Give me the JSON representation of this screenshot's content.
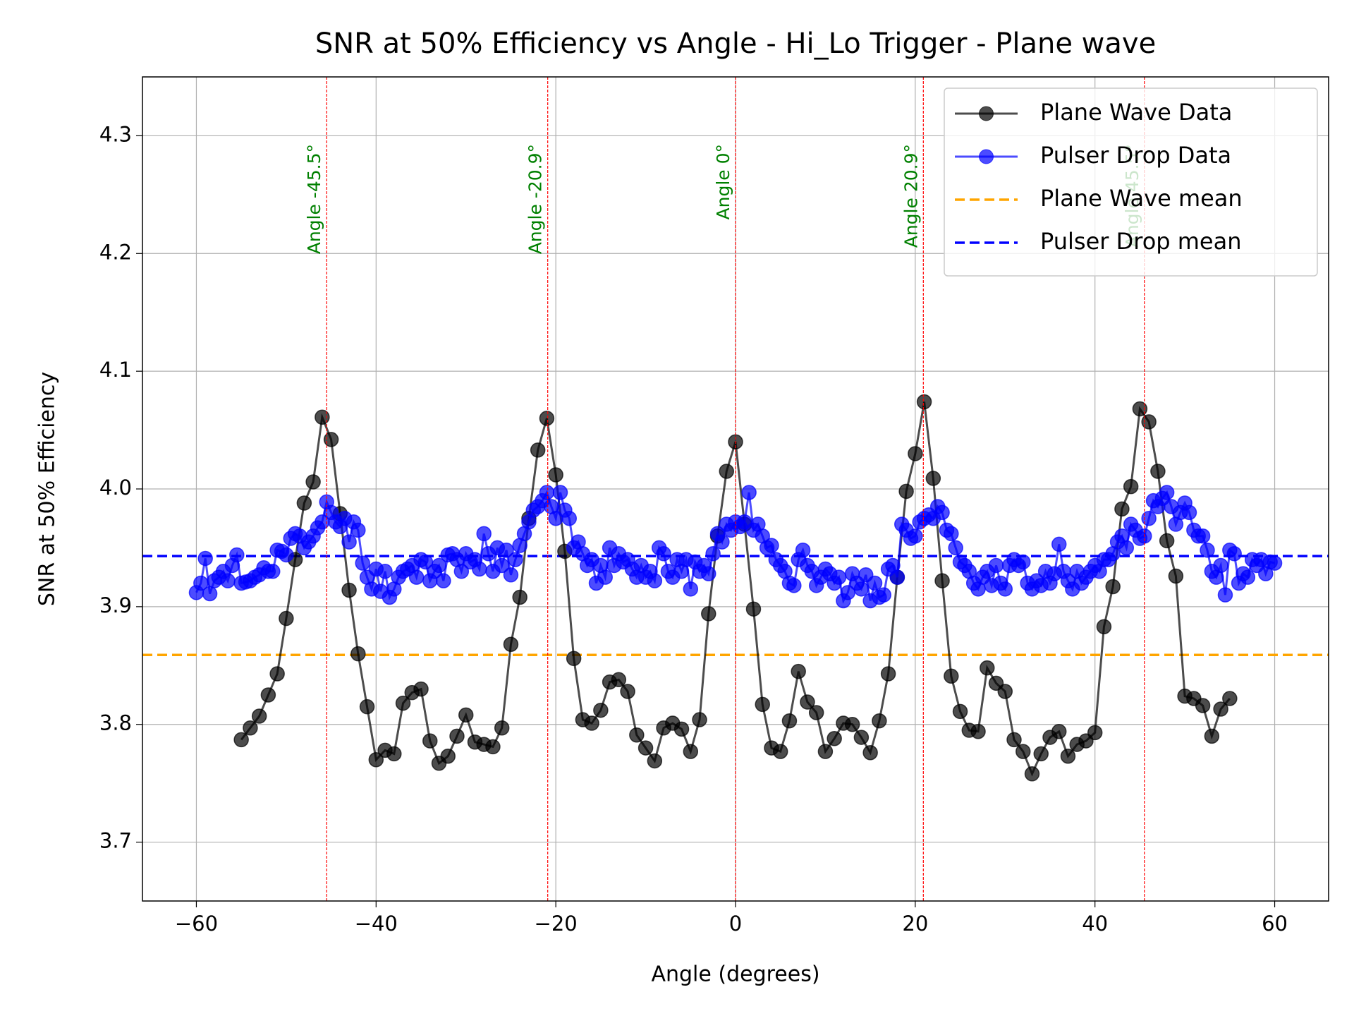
{
  "chart_data": {
    "type": "line",
    "title": "SNR at 50% Efficiency vs Angle - Hi_Lo Trigger - Plane wave",
    "xlabel": "Angle (degrees)",
    "ylabel": "SNR at 50% Efficiency",
    "xlim": [
      -66,
      66
    ],
    "ylim": [
      3.65,
      4.35
    ],
    "xticks": [
      {
        "value": -60,
        "label": "−60"
      },
      {
        "value": -40,
        "label": "−40"
      },
      {
        "value": -20,
        "label": "−20"
      },
      0,
      20,
      40,
      60
    ],
    "yticks": [
      3.7,
      3.8,
      3.9,
      {
        "value": 4.0,
        "label": "4.0"
      },
      4.1,
      4.2,
      4.3
    ],
    "grid": true,
    "legend": "upper right",
    "series": [
      {
        "name": "Plane Wave Data",
        "color": "black",
        "alpha": 0.7,
        "x": [
          -55,
          -54,
          -53,
          -52,
          -51,
          -50,
          -49,
          -48,
          -47,
          -46,
          -45,
          -44,
          -43,
          -42,
          -41,
          -40,
          -39,
          -38,
          -37,
          -36,
          -35,
          -34,
          -33,
          -32,
          -31,
          -30,
          -29,
          -28,
          -27,
          -26,
          -25,
          -24,
          -23,
          -22,
          -21,
          -20,
          -19,
          -18,
          -17,
          -16,
          -15,
          -14,
          -13,
          -12,
          -11,
          -10,
          -9,
          -8,
          -7,
          -6,
          -5,
          -4,
          -3,
          -2,
          -1,
          0,
          1,
          2,
          3,
          4,
          5,
          6,
          7,
          8,
          9,
          10,
          11,
          12,
          13,
          14,
          15,
          16,
          17,
          18,
          19,
          20,
          21,
          22,
          23,
          24,
          25,
          26,
          27,
          28,
          29,
          30,
          31,
          32,
          33,
          34,
          35,
          36,
          37,
          38,
          39,
          40,
          41,
          42,
          43,
          44,
          45,
          46,
          47,
          48,
          49,
          50,
          51,
          52,
          53,
          54,
          55
        ],
        "values": [
          3.787,
          3.797,
          3.807,
          3.825,
          3.843,
          3.89,
          3.94,
          3.988,
          4.006,
          4.061,
          4.042,
          3.979,
          3.914,
          3.86,
          3.815,
          3.77,
          3.778,
          3.775,
          3.818,
          3.827,
          3.83,
          3.786,
          3.767,
          3.773,
          3.79,
          3.808,
          3.785,
          3.783,
          3.781,
          3.797,
          3.868,
          3.908,
          3.975,
          4.033,
          4.06,
          4.012,
          3.947,
          3.856,
          3.804,
          3.801,
          3.812,
          3.836,
          3.838,
          3.828,
          3.791,
          3.78,
          3.769,
          3.797,
          3.801,
          3.796,
          3.777,
          3.804,
          3.894,
          3.96,
          4.015,
          4.04,
          3.97,
          3.898,
          3.817,
          3.78,
          3.777,
          3.803,
          3.845,
          3.819,
          3.81,
          3.777,
          3.788,
          3.801,
          3.8,
          3.789,
          3.776,
          3.803,
          3.843,
          3.925,
          3.998,
          4.03,
          4.074,
          4.009,
          3.922,
          3.841,
          3.811,
          3.795,
          3.794,
          3.848,
          3.835,
          3.828,
          3.787,
          3.777,
          3.758,
          3.775,
          3.789,
          3.794,
          3.773,
          3.783,
          3.786,
          3.793,
          3.883,
          3.917,
          3.983,
          4.002,
          4.068,
          4.057,
          4.015,
          3.956,
          3.926,
          3.824,
          3.822,
          3.816,
          3.79,
          3.813,
          3.822
        ]
      },
      {
        "name": "Pulser Drop Data",
        "color": "blue",
        "alpha": 0.7,
        "x": [
          -60,
          -59.5,
          -59,
          -58.5,
          -58,
          -57.5,
          -57,
          -56.5,
          -56,
          -55.5,
          -55,
          -54.5,
          -54,
          -53.5,
          -53,
          -52.5,
          -52,
          -51.5,
          -51,
          -50.5,
          -50,
          -49.5,
          -49,
          -48.5,
          -48,
          -47.5,
          -47,
          -46.5,
          -46,
          -45.5,
          -45,
          -44.5,
          -44,
          -43.5,
          -43,
          -42.5,
          -42,
          -41.5,
          -41,
          -40.5,
          -40,
          -39.5,
          -39,
          -38.5,
          -38,
          -37.5,
          -37,
          -36.5,
          -36,
          -35.5,
          -35,
          -34.5,
          -34,
          -33.5,
          -33,
          -32.5,
          -32,
          -31.5,
          -31,
          -30.5,
          -30,
          -29.5,
          -29,
          -28.5,
          -28,
          -27.5,
          -27,
          -26.5,
          -26,
          -25.5,
          -25,
          -24.5,
          -24,
          -23.5,
          -23,
          -22.5,
          -22,
          -21.5,
          -21,
          -20.5,
          -20,
          -19.5,
          -19,
          -18.5,
          -18,
          -17.5,
          -17,
          -16.5,
          -16,
          -15.5,
          -15,
          -14.5,
          -14,
          -13.5,
          -13,
          -12.5,
          -12,
          -11.5,
          -11,
          -10.5,
          -10,
          -9.5,
          -9,
          -8.5,
          -8,
          -7.5,
          -7,
          -6.5,
          -6,
          -5.5,
          -5,
          -4.5,
          -4,
          -3.5,
          -3,
          -2.5,
          -2,
          -1.5,
          -1,
          -0.5,
          0,
          0.5,
          1,
          1.5,
          2,
          2.5,
          3,
          3.5,
          4,
          4.5,
          5,
          5.5,
          6,
          6.5,
          7,
          7.5,
          8,
          8.5,
          9,
          9.5,
          10,
          10.5,
          11,
          11.5,
          12,
          12.5,
          13,
          13.5,
          14,
          14.5,
          15,
          15.5,
          16,
          16.5,
          17,
          17.5,
          18,
          18.5,
          19,
          19.5,
          20,
          20.5,
          21,
          21.5,
          22,
          22.5,
          23,
          23.5,
          24,
          24.5,
          25,
          25.5,
          26,
          26.5,
          27,
          27.5,
          28,
          28.5,
          29,
          29.5,
          30,
          30.5,
          31,
          31.5,
          32,
          32.5,
          33,
          33.5,
          34,
          34.5,
          35,
          35.5,
          36,
          36.5,
          37,
          37.5,
          38,
          38.5,
          39,
          39.5,
          40,
          40.5,
          41,
          41.5,
          42,
          42.5,
          43,
          43.5,
          44,
          44.5,
          45,
          45.5,
          46,
          46.5,
          47,
          47.5,
          48,
          48.5,
          49,
          49.5,
          50,
          50.5,
          51,
          51.5,
          52,
          52.5,
          53,
          53.5,
          54,
          54.5,
          55,
          55.5,
          56,
          56.5,
          57,
          57.5,
          58,
          58.5,
          59,
          59.5,
          60
        ],
        "values": [
          3.912,
          3.92,
          3.941,
          3.911,
          3.922,
          3.925,
          3.93,
          3.922,
          3.935,
          3.944,
          3.92,
          3.921,
          3.922,
          3.925,
          3.927,
          3.933,
          3.93,
          3.93,
          3.948,
          3.947,
          3.944,
          3.958,
          3.962,
          3.96,
          3.95,
          3.955,
          3.96,
          3.967,
          3.972,
          3.989,
          3.98,
          3.972,
          3.968,
          3.975,
          3.955,
          3.972,
          3.965,
          3.937,
          3.925,
          3.915,
          3.932,
          3.913,
          3.93,
          3.908,
          3.915,
          3.925,
          3.93,
          3.932,
          3.935,
          3.925,
          3.94,
          3.938,
          3.922,
          3.93,
          3.935,
          3.922,
          3.944,
          3.945,
          3.94,
          3.93,
          3.945,
          3.938,
          3.94,
          3.932,
          3.962,
          3.945,
          3.93,
          3.95,
          3.935,
          3.948,
          3.927,
          3.94,
          3.952,
          3.962,
          3.972,
          3.982,
          3.985,
          3.99,
          3.997,
          3.985,
          3.975,
          3.997,
          3.982,
          3.975,
          3.95,
          3.955,
          3.945,
          3.935,
          3.94,
          3.92,
          3.935,
          3.925,
          3.95,
          3.935,
          3.945,
          3.938,
          3.94,
          3.932,
          3.925,
          3.935,
          3.925,
          3.93,
          3.922,
          3.95,
          3.945,
          3.93,
          3.925,
          3.94,
          3.93,
          3.94,
          3.915,
          3.938,
          3.93,
          3.935,
          3.928,
          3.945,
          3.962,
          3.955,
          3.97,
          3.965,
          3.972,
          3.968,
          3.972,
          3.997,
          3.965,
          3.97,
          3.96,
          3.95,
          3.952,
          3.94,
          3.935,
          3.93,
          3.92,
          3.918,
          3.94,
          3.948,
          3.935,
          3.93,
          3.918,
          3.925,
          3.932,
          3.928,
          3.92,
          3.925,
          3.905,
          3.912,
          3.928,
          3.92,
          3.915,
          3.927,
          3.905,
          3.92,
          3.908,
          3.91,
          3.932,
          3.935,
          3.925,
          3.97,
          3.965,
          3.958,
          3.96,
          3.972,
          3.975,
          3.978,
          3.975,
          3.985,
          3.98,
          3.965,
          3.962,
          3.95,
          3.938,
          3.935,
          3.93,
          3.92,
          3.915,
          3.925,
          3.93,
          3.918,
          3.935,
          3.92,
          3.915,
          3.935,
          3.94,
          3.935,
          3.938,
          3.92,
          3.915,
          3.922,
          3.918,
          3.93,
          3.92,
          3.928,
          3.953,
          3.93,
          3.922,
          3.915,
          3.93,
          3.92,
          3.925,
          3.93,
          3.935,
          3.93,
          3.94,
          3.94,
          3.945,
          3.955,
          3.96,
          3.95,
          3.97,
          3.965,
          3.958,
          3.96,
          3.975,
          3.99,
          3.985,
          3.992,
          3.997,
          3.985,
          3.97,
          3.98,
          3.988,
          3.98,
          3.965,
          3.96,
          3.96,
          3.948,
          3.93,
          3.925,
          3.935,
          3.91,
          3.948,
          3.945,
          3.92,
          3.928,
          3.925,
          3.94,
          3.935,
          3.94,
          3.928,
          3.938,
          3.937
        ]
      }
    ],
    "hlines": [
      {
        "name": "Plane Wave mean",
        "color": "orange",
        "value": 3.859
      },
      {
        "name": "Pulser Drop mean",
        "color": "blue",
        "value": 3.943
      }
    ],
    "vlines": [
      {
        "x": -45.5,
        "label": "Angle -45.5°",
        "color": "red",
        "label_color": "green"
      },
      {
        "x": -20.9,
        "label": "Angle -20.9°",
        "color": "red",
        "label_color": "green"
      },
      {
        "x": 0,
        "label": "Angle 0°",
        "color": "red",
        "label_color": "green"
      },
      {
        "x": 20.9,
        "label": "Angle 20.9°",
        "color": "red",
        "label_color": "green"
      },
      {
        "x": 45.5,
        "label": "Angle 45.5°",
        "color": "red",
        "label_color": "green"
      }
    ]
  }
}
